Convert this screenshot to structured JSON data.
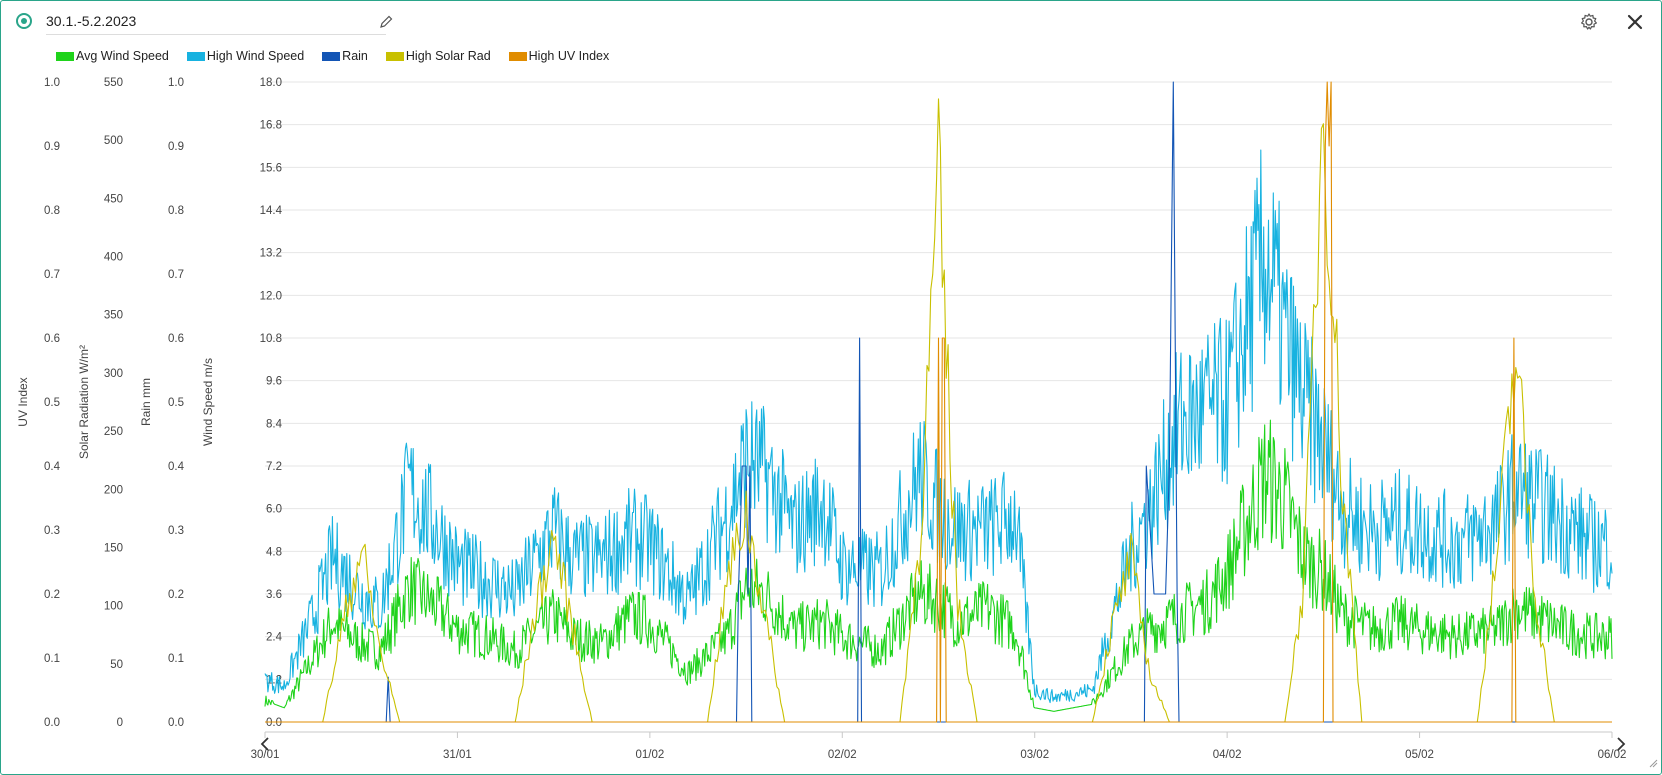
{
  "header": {
    "title": "30.1.-5.2.2023",
    "status_icon": "status-dot-icon",
    "edit_icon": "pencil-icon",
    "settings_icon": "gear-icon",
    "close_icon": "close-icon",
    "accent_color": "#2aa58a"
  },
  "legend": [
    {
      "label": "Avg Wind Speed",
      "color": "#1fd31b"
    },
    {
      "label": "High Wind Speed",
      "color": "#17b2e0"
    },
    {
      "label": "Rain",
      "color": "#1355b5"
    },
    {
      "label": "High Solar Rad",
      "color": "#c8c000"
    },
    {
      "label": "High UV Index",
      "color": "#e08c00"
    }
  ],
  "navigation": {
    "prev_icon": "chevron-left-icon",
    "next_icon": "chevron-right-icon"
  },
  "chart_data": {
    "type": "line",
    "grid": true,
    "legend_position": "top-left",
    "x_ticks": [
      "30/01",
      "31/01",
      "01/02",
      "02/02",
      "03/02",
      "04/02",
      "05/02",
      "06/02"
    ],
    "axes": [
      {
        "id": "uv",
        "label": "UV Index",
        "range": [
          0,
          1.0
        ],
        "ticks": [
          "0.0",
          "0.1",
          "0.2",
          "0.3",
          "0.4",
          "0.5",
          "0.6",
          "0.7",
          "0.8",
          "0.9",
          "1.0"
        ]
      },
      {
        "id": "solar",
        "label": "Solar Radiation W/m²",
        "range": [
          0,
          550
        ],
        "ticks": [
          "0",
          "50",
          "100",
          "150",
          "200",
          "250",
          "300",
          "350",
          "400",
          "450",
          "500",
          "550"
        ]
      },
      {
        "id": "rain",
        "label": "Rain mm",
        "range": [
          0,
          1.0
        ],
        "ticks": [
          "0.0",
          "0.1",
          "0.2",
          "0.3",
          "0.4",
          "0.5",
          "0.6",
          "0.7",
          "0.8",
          "0.9",
          "1.0"
        ]
      },
      {
        "id": "wind",
        "label": "Wind Speed m/s",
        "range": [
          0,
          18.0
        ],
        "ticks": [
          "0.0",
          "1.2",
          "2.4",
          "3.6",
          "4.8",
          "6.0",
          "7.2",
          "8.4",
          "9.6",
          "10.8",
          "12.0",
          "13.2",
          "14.4",
          "15.6",
          "16.8",
          "18.0"
        ]
      }
    ],
    "series": [
      {
        "name": "Avg Wind Speed",
        "axis": "wind",
        "color": "#1fd31b",
        "x_days": [
          0,
          0.1,
          0.25,
          0.35,
          0.5,
          0.6,
          0.75,
          0.9,
          1.0,
          1.15,
          1.3,
          1.5,
          1.6,
          1.75,
          1.9,
          2.0,
          2.2,
          2.4,
          2.5,
          2.6,
          2.75,
          2.9,
          3.0,
          3.2,
          3.4,
          3.5,
          3.6,
          3.75,
          3.9,
          4.0,
          4.1,
          4.3,
          4.5,
          4.6,
          4.75,
          4.9,
          5.0,
          5.2,
          5.3,
          5.4,
          5.5,
          5.6,
          5.75,
          5.9,
          6.0,
          6.2,
          6.4,
          6.5,
          6.6,
          6.75,
          6.9,
          7.0
        ],
        "values": [
          0.6,
          0.4,
          1.8,
          2.8,
          2.2,
          2.0,
          3.8,
          3.2,
          2.6,
          2.4,
          2.0,
          3.0,
          2.4,
          2.2,
          3.0,
          2.8,
          1.4,
          2.4,
          3.8,
          3.6,
          2.6,
          2.8,
          2.4,
          2.0,
          3.6,
          3.4,
          2.8,
          3.2,
          2.6,
          0.4,
          0.3,
          0.5,
          2.2,
          2.6,
          3.0,
          3.4,
          4.2,
          7.0,
          6.2,
          4.6,
          4.2,
          3.0,
          2.6,
          2.8,
          2.6,
          2.4,
          2.6,
          3.2,
          3.0,
          2.6,
          2.4,
          2.4
        ]
      },
      {
        "name": "High Wind Speed",
        "axis": "wind",
        "color": "#17b2e0",
        "x_days": [
          0,
          0.1,
          0.25,
          0.35,
          0.5,
          0.6,
          0.75,
          0.9,
          1.0,
          1.15,
          1.3,
          1.5,
          1.6,
          1.75,
          1.9,
          2.0,
          2.2,
          2.4,
          2.5,
          2.6,
          2.75,
          2.9,
          3.0,
          3.2,
          3.4,
          3.5,
          3.6,
          3.75,
          3.9,
          4.0,
          4.1,
          4.3,
          4.5,
          4.6,
          4.75,
          4.9,
          5.0,
          5.2,
          5.3,
          5.4,
          5.5,
          5.6,
          5.75,
          5.9,
          6.0,
          6.2,
          6.4,
          6.5,
          6.6,
          6.75,
          6.9,
          7.0
        ],
        "values": [
          1.2,
          1.0,
          3.0,
          4.6,
          3.6,
          3.2,
          6.6,
          5.4,
          4.4,
          4.0,
          3.6,
          5.4,
          4.6,
          4.6,
          5.2,
          5.0,
          3.4,
          5.8,
          7.4,
          7.0,
          5.4,
          6.2,
          4.4,
          4.2,
          7.0,
          6.0,
          5.4,
          5.4,
          5.8,
          0.9,
          0.7,
          0.9,
          4.8,
          6.0,
          8.4,
          8.8,
          9.0,
          13.2,
          10.8,
          9.0,
          7.8,
          6.0,
          5.4,
          5.6,
          5.4,
          5.0,
          5.6,
          6.6,
          6.2,
          5.6,
          5.0,
          5.0
        ]
      },
      {
        "name": "Rain",
        "axis": "rain",
        "color": "#1355b5",
        "x_days": [
          0,
          0.63,
          0.64,
          0.65,
          1.0,
          2.45,
          2.46,
          2.48,
          2.5,
          2.51,
          2.52,
          2.53,
          3.0,
          3.08,
          3.09,
          3.1,
          4.0,
          4.57,
          4.58,
          4.62,
          4.64,
          4.68,
          4.7,
          4.72,
          4.74,
          4.75,
          5.0,
          7.0
        ],
        "values": [
          0,
          0,
          0.07,
          0,
          0,
          0,
          0.2,
          0.4,
          0.4,
          0.2,
          0.4,
          0,
          0,
          0,
          0.6,
          0,
          0,
          0,
          0.4,
          0.2,
          0.2,
          0.2,
          0.4,
          1.0,
          0.2,
          0,
          0,
          0
        ]
      },
      {
        "name": "High Solar Rad",
        "axis": "solar",
        "color": "#c8c000",
        "x_days": [
          0,
          0.3,
          0.4,
          0.5,
          0.6,
          0.7,
          1.3,
          1.4,
          1.5,
          1.6,
          1.7,
          2.3,
          2.4,
          2.5,
          2.6,
          2.7,
          3.3,
          3.4,
          3.5,
          3.6,
          3.7,
          4.3,
          4.4,
          4.5,
          4.6,
          4.7,
          5.3,
          5.4,
          5.5,
          5.6,
          5.7,
          6.3,
          6.4,
          6.5,
          6.6,
          6.7,
          7.0
        ],
        "values": [
          0,
          0,
          80,
          150,
          60,
          0,
          0,
          90,
          160,
          80,
          0,
          0,
          120,
          180,
          90,
          0,
          0,
          150,
          460,
          100,
          0,
          0,
          80,
          140,
          40,
          0,
          0,
          120,
          540,
          200,
          0,
          0,
          140,
          320,
          110,
          0,
          0
        ]
      },
      {
        "name": "High UV Index",
        "axis": "uv",
        "color": "#e08c00",
        "x_days": [
          0,
          3.49,
          3.5,
          3.51,
          3.52,
          3.53,
          3.54,
          5.5,
          5.51,
          5.52,
          5.53,
          5.54,
          5.55,
          6.48,
          6.49,
          6.5,
          7.0
        ],
        "values": [
          0,
          0,
          0.6,
          0,
          0.6,
          0.6,
          0,
          0,
          0.9,
          1.0,
          0.9,
          1.0,
          0,
          0,
          0.6,
          0,
          0
        ]
      }
    ]
  }
}
